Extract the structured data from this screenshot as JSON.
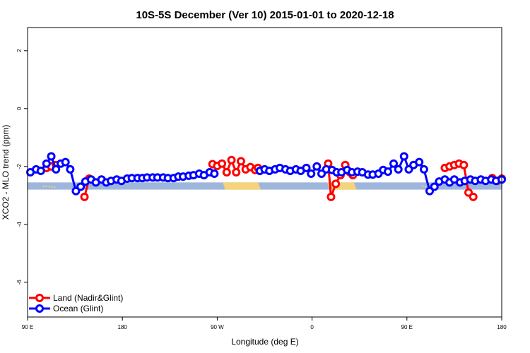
{
  "chart_data": {
    "type": "line",
    "title": "10S-5S December (Ver 10)   2015-01-01 to 2020-12-18",
    "xlabel": "Longitude (deg E)",
    "ylabel": "XCO2 - MLO trend (ppm)",
    "xlim": [
      90,
      590
    ],
    "ylim": [
      -7.2,
      2.8
    ],
    "x_ticks": [
      {
        "value": 90,
        "label": "90 E"
      },
      {
        "value": 190,
        "label": "180"
      },
      {
        "value": 290,
        "label": "90 W"
      },
      {
        "value": 390,
        "label": "0"
      },
      {
        "value": 490,
        "label": "90 E"
      },
      {
        "value": 590,
        "label": "180"
      }
    ],
    "y_ticks": [
      2,
      0,
      -2,
      -4,
      -6
    ],
    "legend_position": "bottom-left",
    "colors": {
      "land": "#ff0000",
      "ocean": "#0000ff",
      "map_ocean": "#9fb6dc",
      "map_land": "#f6d37a"
    },
    "series": [
      {
        "name": "Land (Nadir&Glint)",
        "color": "#ff0000",
        "x": [
          110,
          115,
          120,
          150,
          155,
          285,
          290,
          295,
          300,
          305,
          310,
          315,
          320,
          325,
          330,
          333,
          407,
          410,
          415,
          420,
          425,
          430,
          433,
          530,
          535,
          540,
          545,
          550,
          555,
          560,
          580,
          585,
          590
        ],
        "y": [
          -2.05,
          -2.0,
          -1.95,
          -3.05,
          -2.42,
          -1.92,
          -1.98,
          -1.9,
          -2.2,
          -1.78,
          -2.2,
          -1.82,
          -2.1,
          -2.02,
          -2.12,
          -2.05,
          -1.9,
          -3.05,
          -2.6,
          -2.3,
          -1.95,
          -2.2,
          -2.3,
          -2.05,
          -2.0,
          -1.95,
          -1.9,
          -1.95,
          -2.9,
          -3.05,
          -2.4,
          -2.5,
          -2.42
        ]
      },
      {
        "name": "Ocean (Glint)",
        "color": "#0000ff",
        "x": [
          93,
          99,
          104,
          110,
          115,
          120,
          125,
          130,
          135,
          141,
          146,
          151,
          157,
          162,
          168,
          173,
          178,
          184,
          189,
          195,
          200,
          206,
          211,
          216,
          222,
          227,
          233,
          238,
          244,
          249,
          254,
          260,
          265,
          271,
          276,
          282,
          287,
          335,
          340,
          345,
          351,
          356,
          362,
          367,
          373,
          378,
          384,
          389,
          395,
          400,
          405,
          411,
          416,
          421,
          427,
          432,
          438,
          443,
          449,
          454,
          460,
          465,
          470,
          476,
          481,
          487,
          492,
          497,
          503,
          508,
          514,
          519,
          524,
          530,
          535,
          540,
          546,
          551,
          557,
          562,
          568,
          573,
          579,
          584,
          590
        ],
        "y": [
          -2.2,
          -2.1,
          -2.15,
          -1.9,
          -1.65,
          -2.1,
          -1.9,
          -1.85,
          -2.1,
          -2.85,
          -2.7,
          -2.52,
          -2.45,
          -2.55,
          -2.45,
          -2.55,
          -2.5,
          -2.45,
          -2.5,
          -2.42,
          -2.4,
          -2.4,
          -2.4,
          -2.38,
          -2.38,
          -2.38,
          -2.38,
          -2.4,
          -2.4,
          -2.35,
          -2.35,
          -2.32,
          -2.3,
          -2.25,
          -2.3,
          -2.2,
          -2.25,
          -2.15,
          -2.1,
          -2.15,
          -2.1,
          -2.05,
          -2.1,
          -2.15,
          -2.1,
          -2.15,
          -2.05,
          -2.25,
          -2.0,
          -2.25,
          -2.1,
          -2.12,
          -2.2,
          -2.2,
          -2.12,
          -2.2,
          -2.18,
          -2.2,
          -2.28,
          -2.28,
          -2.25,
          -2.12,
          -2.18,
          -1.9,
          -2.1,
          -1.65,
          -2.1,
          -1.95,
          -1.85,
          -2.1,
          -2.85,
          -2.7,
          -2.52,
          -2.45,
          -2.55,
          -2.45,
          -2.55,
          -2.5,
          -2.45,
          -2.5,
          -2.45,
          -2.5,
          -2.45,
          -2.5,
          -2.45
        ]
      }
    ]
  }
}
